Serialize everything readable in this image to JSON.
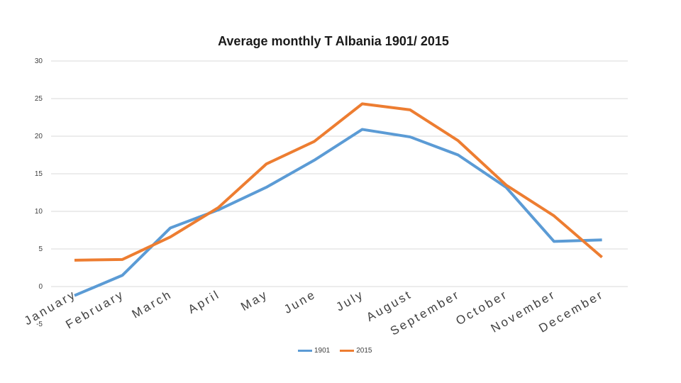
{
  "chart_data": {
    "type": "line",
    "title": "Average monthly T Albania 1901/ 2015",
    "xlabel": "",
    "ylabel": "",
    "ylim": [
      -5,
      30
    ],
    "yticks": [
      -5,
      0,
      5,
      10,
      15,
      20,
      25,
      30
    ],
    "categories": [
      "January",
      "February",
      "March",
      "April",
      "May",
      "June",
      "July",
      "August",
      "September",
      "October",
      "November",
      "December"
    ],
    "series": [
      {
        "name": "1901",
        "color": "#5b9bd5",
        "values": [
          -1.2,
          1.5,
          7.8,
          10.2,
          13.2,
          16.8,
          20.9,
          19.9,
          17.5,
          13.2,
          6.0,
          6.2
        ]
      },
      {
        "name": "2015",
        "color": "#ed7d31",
        "values": [
          3.5,
          3.6,
          6.6,
          10.5,
          16.3,
          19.3,
          24.3,
          23.5,
          19.4,
          13.5,
          9.4,
          3.9
        ]
      }
    ],
    "grid": true,
    "legend_position": "bottom"
  }
}
